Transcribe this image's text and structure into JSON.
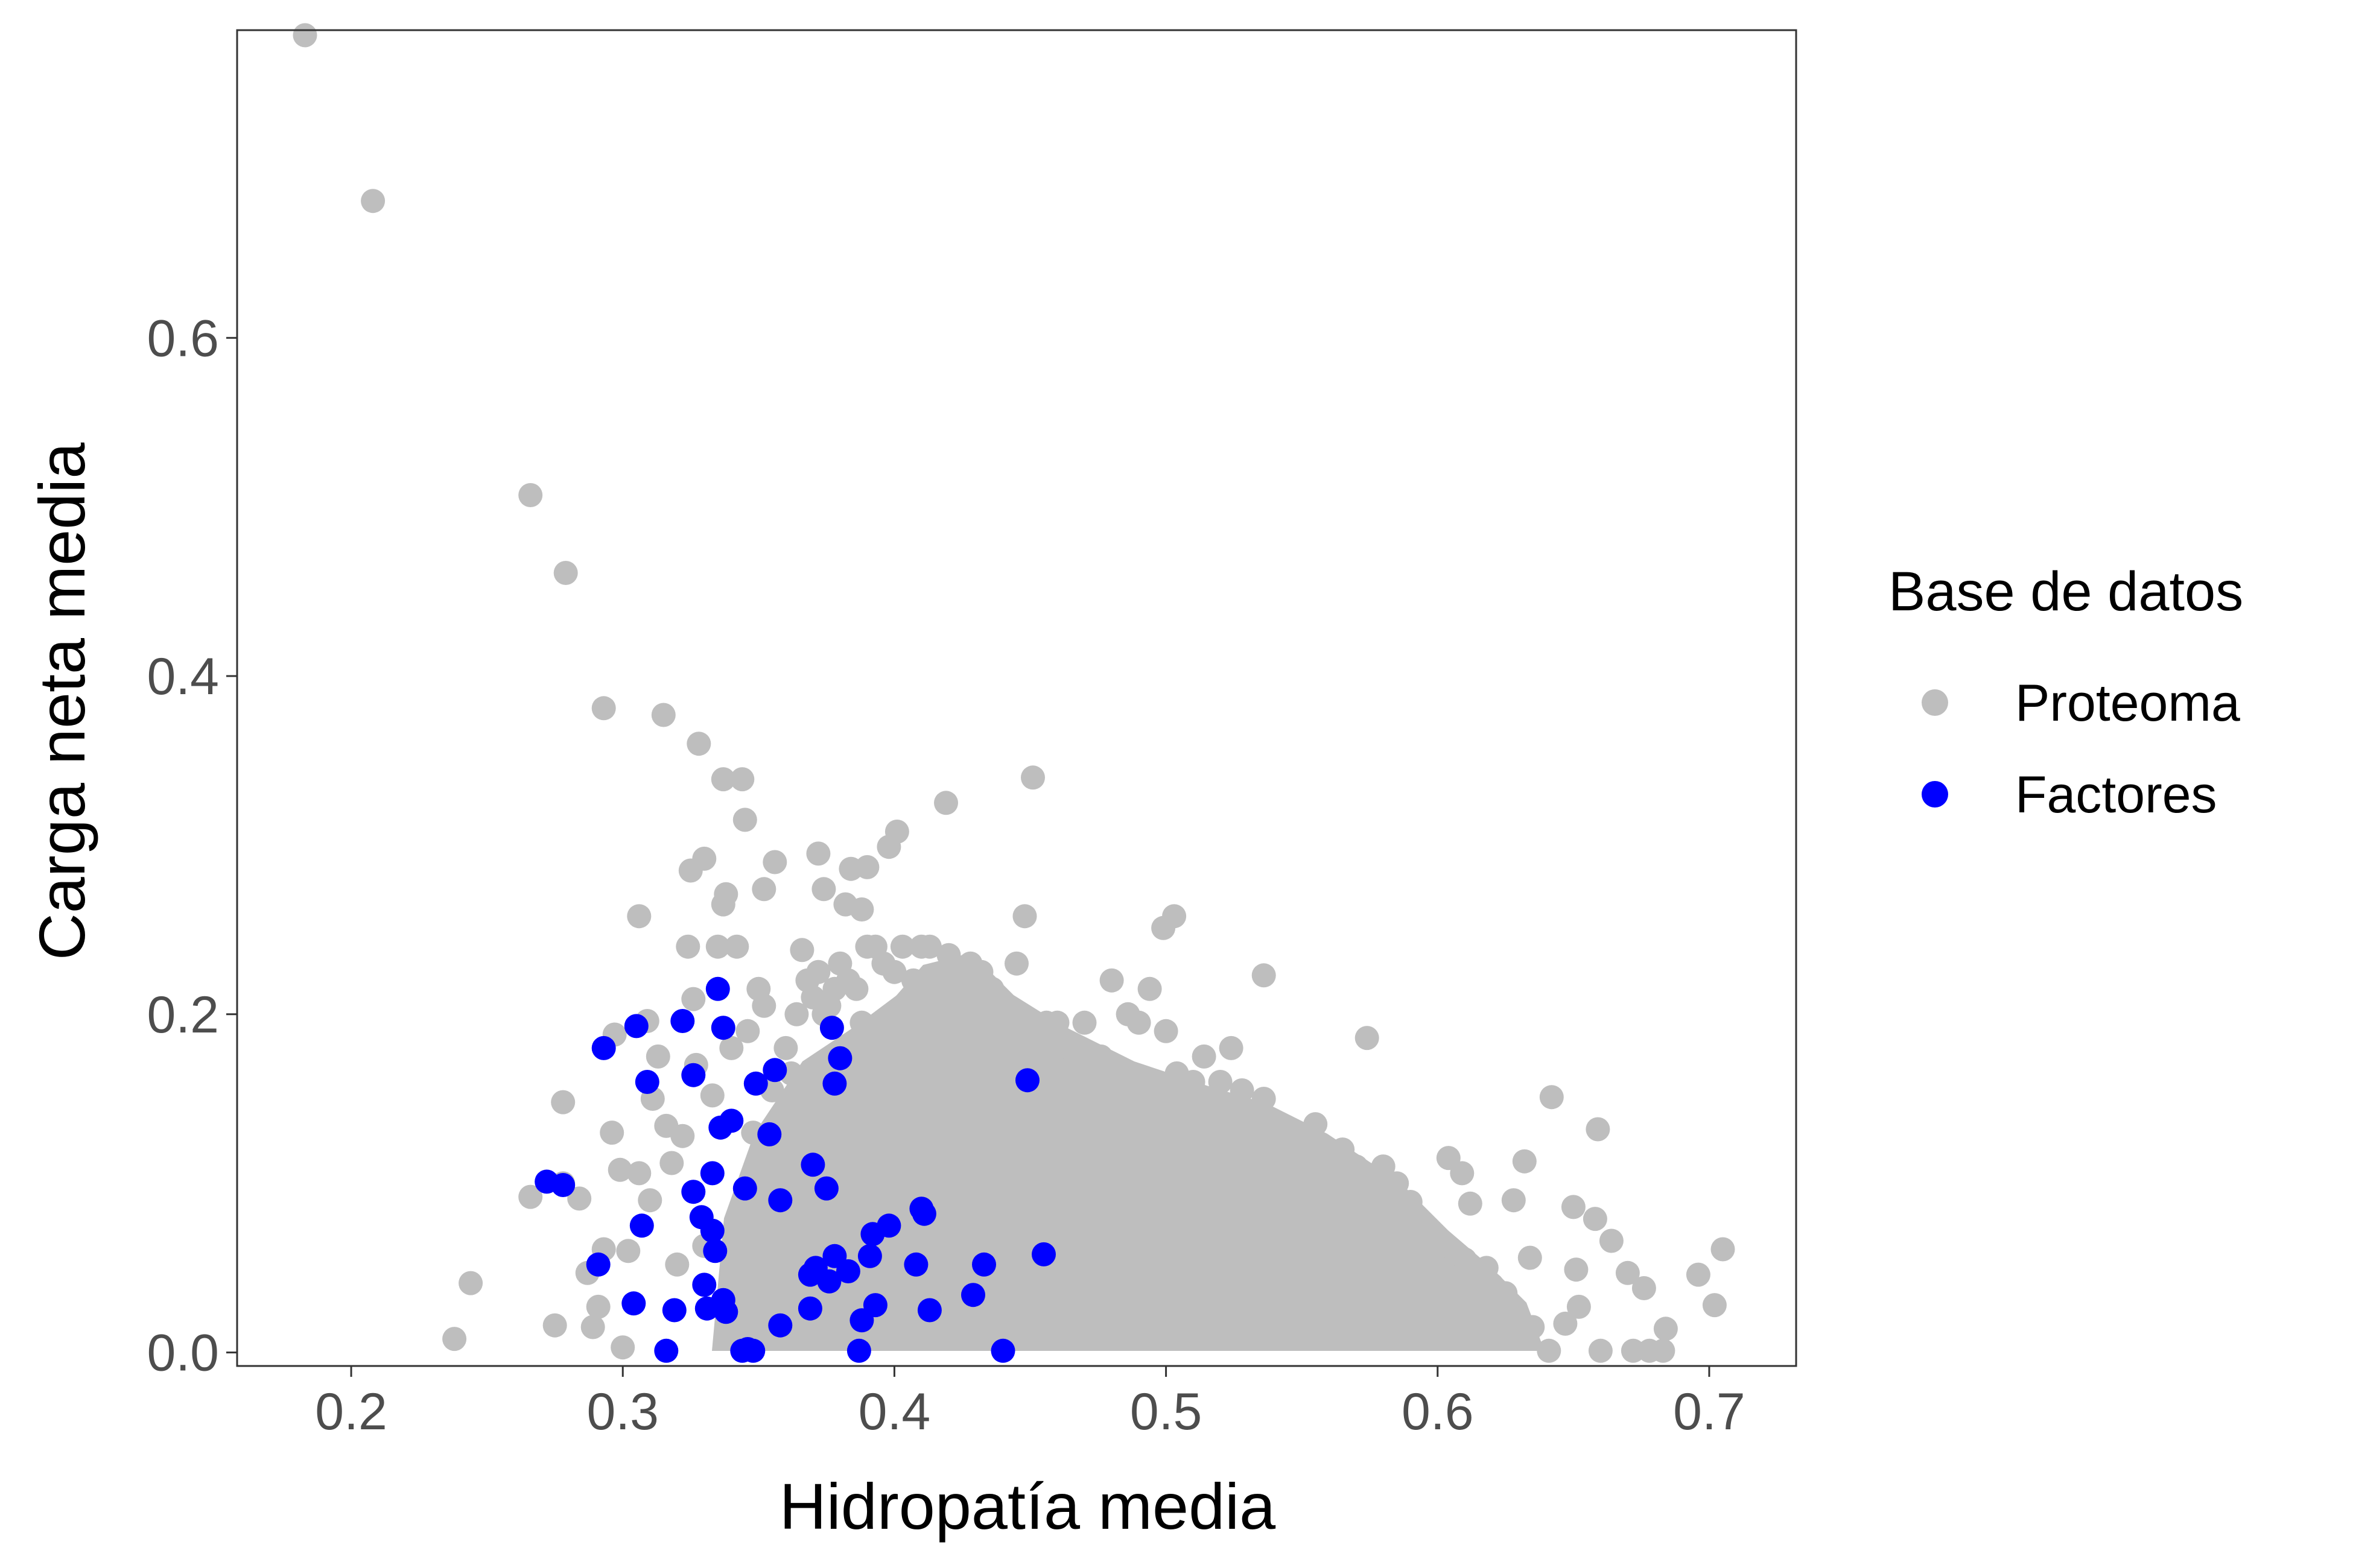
{
  "chart_data": {
    "type": "scatter",
    "xlabel": "Hidropatía media",
    "ylabel": "Carga neta media",
    "xlim": [
      0.158,
      0.732
    ],
    "ylim": [
      -0.008,
      0.782
    ],
    "x_ticks": [
      0.2,
      0.3,
      0.4,
      0.5,
      0.6,
      0.7
    ],
    "x_tick_labels": [
      "0.2",
      "0.3",
      "0.4",
      "0.5",
      "0.6",
      "0.7"
    ],
    "y_ticks": [
      0.0,
      0.2,
      0.4,
      0.6
    ],
    "y_tick_labels": [
      "0.0",
      "0.2",
      "0.4",
      "0.6"
    ],
    "grid": false,
    "legend": {
      "title": "Base de datos",
      "position": "right",
      "entries": [
        "Proteoma",
        "Factores"
      ]
    },
    "series": [
      {
        "name": "Proteoma",
        "color": "#BEBEBE",
        "points": [
          [
            0.183,
            0.779
          ],
          [
            0.208,
            0.681
          ],
          [
            0.266,
            0.507
          ],
          [
            0.279,
            0.461
          ],
          [
            0.293,
            0.381
          ],
          [
            0.315,
            0.377
          ],
          [
            0.328,
            0.36
          ],
          [
            0.337,
            0.339
          ],
          [
            0.344,
            0.339
          ],
          [
            0.451,
            0.34
          ],
          [
            0.419,
            0.325
          ],
          [
            0.345,
            0.315
          ],
          [
            0.401,
            0.308
          ],
          [
            0.398,
            0.299
          ],
          [
            0.356,
            0.29
          ],
          [
            0.372,
            0.295
          ],
          [
            0.33,
            0.292
          ],
          [
            0.325,
            0.285
          ],
          [
            0.384,
            0.286
          ],
          [
            0.39,
            0.287
          ],
          [
            0.338,
            0.271
          ],
          [
            0.352,
            0.274
          ],
          [
            0.374,
            0.274
          ],
          [
            0.382,
            0.265
          ],
          [
            0.388,
            0.262
          ],
          [
            0.306,
            0.258
          ],
          [
            0.448,
            0.258
          ],
          [
            0.503,
            0.258
          ],
          [
            0.499,
            0.251
          ],
          [
            0.536,
            0.223
          ],
          [
            0.574,
            0.186
          ],
          [
            0.642,
            0.151
          ],
          [
            0.659,
            0.132
          ],
          [
            0.632,
            0.113
          ],
          [
            0.604,
            0.115
          ],
          [
            0.609,
            0.106
          ],
          [
            0.59,
            0.089
          ],
          [
            0.612,
            0.088
          ],
          [
            0.628,
            0.09
          ],
          [
            0.65,
            0.086
          ],
          [
            0.658,
            0.079
          ],
          [
            0.664,
            0.066
          ],
          [
            0.634,
            0.056
          ],
          [
            0.651,
            0.049
          ],
          [
            0.67,
            0.047
          ],
          [
            0.676,
            0.038
          ],
          [
            0.684,
            0.014
          ],
          [
            0.696,
            0.046
          ],
          [
            0.705,
            0.061
          ],
          [
            0.702,
            0.028
          ],
          [
            0.652,
            0.027
          ],
          [
            0.647,
            0.017
          ],
          [
            0.66,
            0.001
          ],
          [
            0.672,
            0.001
          ],
          [
            0.678,
            0.001
          ],
          [
            0.683,
            0.001
          ],
          [
            0.641,
            0.001
          ],
          [
            0.244,
            0.041
          ],
          [
            0.238,
            0.008
          ],
          [
            0.266,
            0.092
          ],
          [
            0.278,
            0.148
          ],
          [
            0.278,
            0.1
          ],
          [
            0.275,
            0.016
          ],
          [
            0.284,
            0.091
          ],
          [
            0.287,
            0.047
          ],
          [
            0.289,
            0.015
          ],
          [
            0.291,
            0.027
          ],
          [
            0.293,
            0.061
          ],
          [
            0.296,
            0.13
          ],
          [
            0.297,
            0.188
          ],
          [
            0.299,
            0.108
          ],
          [
            0.3,
            0.003
          ],
          [
            0.302,
            0.06
          ],
          [
            0.306,
            0.106
          ],
          [
            0.309,
            0.196
          ],
          [
            0.31,
            0.09
          ],
          [
            0.311,
            0.15
          ],
          [
            0.313,
            0.175
          ],
          [
            0.316,
            0.134
          ],
          [
            0.318,
            0.112
          ],
          [
            0.32,
            0.052
          ],
          [
            0.322,
            0.128
          ],
          [
            0.324,
            0.24
          ],
          [
            0.326,
            0.209
          ],
          [
            0.327,
            0.17
          ],
          [
            0.33,
            0.063
          ],
          [
            0.333,
            0.152
          ],
          [
            0.335,
            0.24
          ],
          [
            0.337,
            0.265
          ],
          [
            0.34,
            0.18
          ],
          [
            0.342,
            0.24
          ],
          [
            0.346,
            0.19
          ],
          [
            0.348,
            0.13
          ],
          [
            0.35,
            0.215
          ],
          [
            0.352,
            0.205
          ],
          [
            0.355,
            0.155
          ],
          [
            0.358,
            0.12
          ],
          [
            0.36,
            0.18
          ],
          [
            0.362,
            0.165
          ],
          [
            0.364,
            0.2
          ],
          [
            0.366,
            0.238
          ],
          [
            0.368,
            0.22
          ],
          [
            0.37,
            0.21
          ],
          [
            0.372,
            0.225
          ],
          [
            0.374,
            0.2
          ],
          [
            0.376,
            0.205
          ],
          [
            0.378,
            0.215
          ],
          [
            0.38,
            0.23
          ],
          [
            0.383,
            0.22
          ],
          [
            0.386,
            0.215
          ],
          [
            0.388,
            0.195
          ],
          [
            0.39,
            0.24
          ],
          [
            0.393,
            0.24
          ],
          [
            0.396,
            0.23
          ],
          [
            0.4,
            0.225
          ],
          [
            0.403,
            0.24
          ],
          [
            0.407,
            0.22
          ],
          [
            0.41,
            0.24
          ],
          [
            0.413,
            0.24
          ],
          [
            0.417,
            0.21
          ],
          [
            0.42,
            0.235
          ],
          [
            0.424,
            0.22
          ],
          [
            0.428,
            0.23
          ],
          [
            0.432,
            0.225
          ],
          [
            0.436,
            0.215
          ],
          [
            0.44,
            0.2
          ],
          [
            0.445,
            0.23
          ],
          [
            0.45,
            0.185
          ],
          [
            0.456,
            0.195
          ],
          [
            0.46,
            0.195
          ],
          [
            0.466,
            0.17
          ],
          [
            0.47,
            0.195
          ],
          [
            0.476,
            0.175
          ],
          [
            0.48,
            0.22
          ],
          [
            0.486,
            0.2
          ],
          [
            0.49,
            0.195
          ],
          [
            0.494,
            0.215
          ],
          [
            0.5,
            0.19
          ],
          [
            0.504,
            0.165
          ],
          [
            0.51,
            0.16
          ],
          [
            0.514,
            0.175
          ],
          [
            0.52,
            0.16
          ],
          [
            0.524,
            0.18
          ],
          [
            0.528,
            0.155
          ],
          [
            0.532,
            0.14
          ],
          [
            0.536,
            0.15
          ],
          [
            0.54,
            0.13
          ],
          [
            0.545,
            0.125
          ],
          [
            0.55,
            0.12
          ],
          [
            0.555,
            0.135
          ],
          [
            0.56,
            0.115
          ],
          [
            0.565,
            0.12
          ],
          [
            0.57,
            0.11
          ],
          [
            0.575,
            0.105
          ],
          [
            0.58,
            0.11
          ],
          [
            0.585,
            0.1
          ],
          [
            0.59,
            0.08
          ],
          [
            0.595,
            0.07
          ],
          [
            0.6,
            0.06
          ],
          [
            0.605,
            0.05
          ],
          [
            0.61,
            0.055
          ],
          [
            0.615,
            0.045
          ],
          [
            0.62,
            0.04
          ],
          [
            0.625,
            0.035
          ],
          [
            0.63,
            0.02
          ],
          [
            0.635,
            0.015
          ],
          [
            0.618,
            0.05
          ],
          [
            0.624,
            0.025
          ],
          [
            0.628,
            0.01
          ]
        ]
      },
      {
        "name": "Factores",
        "color": "#0000FF",
        "points": [
          [
            0.335,
            0.215
          ],
          [
            0.322,
            0.196
          ],
          [
            0.305,
            0.193
          ],
          [
            0.337,
            0.192
          ],
          [
            0.377,
            0.192
          ],
          [
            0.293,
            0.18
          ],
          [
            0.38,
            0.174
          ],
          [
            0.356,
            0.167
          ],
          [
            0.326,
            0.164
          ],
          [
            0.309,
            0.16
          ],
          [
            0.349,
            0.159
          ],
          [
            0.378,
            0.159
          ],
          [
            0.449,
            0.161
          ],
          [
            0.34,
            0.137
          ],
          [
            0.336,
            0.133
          ],
          [
            0.354,
            0.129
          ],
          [
            0.333,
            0.106
          ],
          [
            0.272,
            0.101
          ],
          [
            0.278,
            0.099
          ],
          [
            0.37,
            0.111
          ],
          [
            0.345,
            0.097
          ],
          [
            0.375,
            0.097
          ],
          [
            0.326,
            0.095
          ],
          [
            0.358,
            0.09
          ],
          [
            0.307,
            0.075
          ],
          [
            0.329,
            0.08
          ],
          [
            0.333,
            0.072
          ],
          [
            0.41,
            0.085
          ],
          [
            0.411,
            0.082
          ],
          [
            0.398,
            0.075
          ],
          [
            0.392,
            0.07
          ],
          [
            0.334,
            0.06
          ],
          [
            0.291,
            0.052
          ],
          [
            0.378,
            0.057
          ],
          [
            0.391,
            0.057
          ],
          [
            0.408,
            0.052
          ],
          [
            0.433,
            0.052
          ],
          [
            0.455,
            0.058
          ],
          [
            0.371,
            0.05
          ],
          [
            0.383,
            0.048
          ],
          [
            0.369,
            0.046
          ],
          [
            0.376,
            0.042
          ],
          [
            0.33,
            0.04
          ],
          [
            0.429,
            0.034
          ],
          [
            0.337,
            0.031
          ],
          [
            0.304,
            0.029
          ],
          [
            0.319,
            0.025
          ],
          [
            0.331,
            0.026
          ],
          [
            0.338,
            0.024
          ],
          [
            0.369,
            0.026
          ],
          [
            0.393,
            0.028
          ],
          [
            0.413,
            0.025
          ],
          [
            0.388,
            0.019
          ],
          [
            0.358,
            0.016
          ],
          [
            0.316,
            0.001
          ],
          [
            0.346,
            0.002
          ],
          [
            0.344,
            0.001
          ],
          [
            0.348,
            0.001
          ],
          [
            0.387,
            0.001
          ],
          [
            0.44,
            0.001
          ]
        ]
      }
    ]
  }
}
